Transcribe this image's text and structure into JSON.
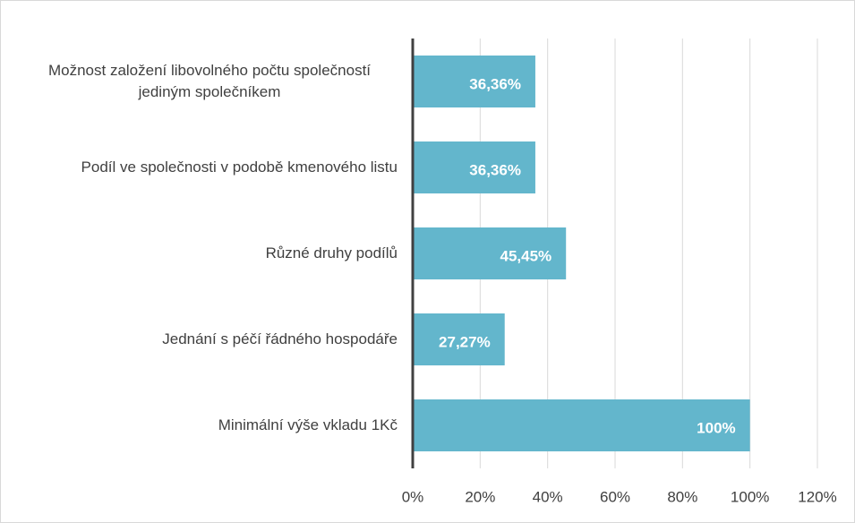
{
  "chart_data": {
    "type": "bar",
    "orientation": "horizontal",
    "categories": [
      "Možnost založení libovolného počtu společností jediným společníkem",
      "Podíl ve společnosti v podobě kmenového listu",
      "Různé druhy podílů",
      "Jednání s péčí řádného hospodáře",
      "Minimální výše vkladu 1Kč"
    ],
    "values": [
      36.36,
      36.36,
      45.45,
      27.27,
      100
    ],
    "value_labels": [
      "36,36%",
      "36,36%",
      "45,45%",
      "27,27%",
      "100%"
    ],
    "color": "#63b6cc",
    "xlim": [
      0,
      120
    ],
    "xticks": [
      {
        "value": 0,
        "label": "0%"
      },
      {
        "value": 20,
        "label": "20%"
      },
      {
        "value": 40,
        "label": "40%"
      },
      {
        "value": 60,
        "label": "60%"
      },
      {
        "value": 80,
        "label": "80%"
      },
      {
        "value": 100,
        "label": "100%"
      },
      {
        "value": 120,
        "label": "120%"
      }
    ],
    "grid": true
  }
}
